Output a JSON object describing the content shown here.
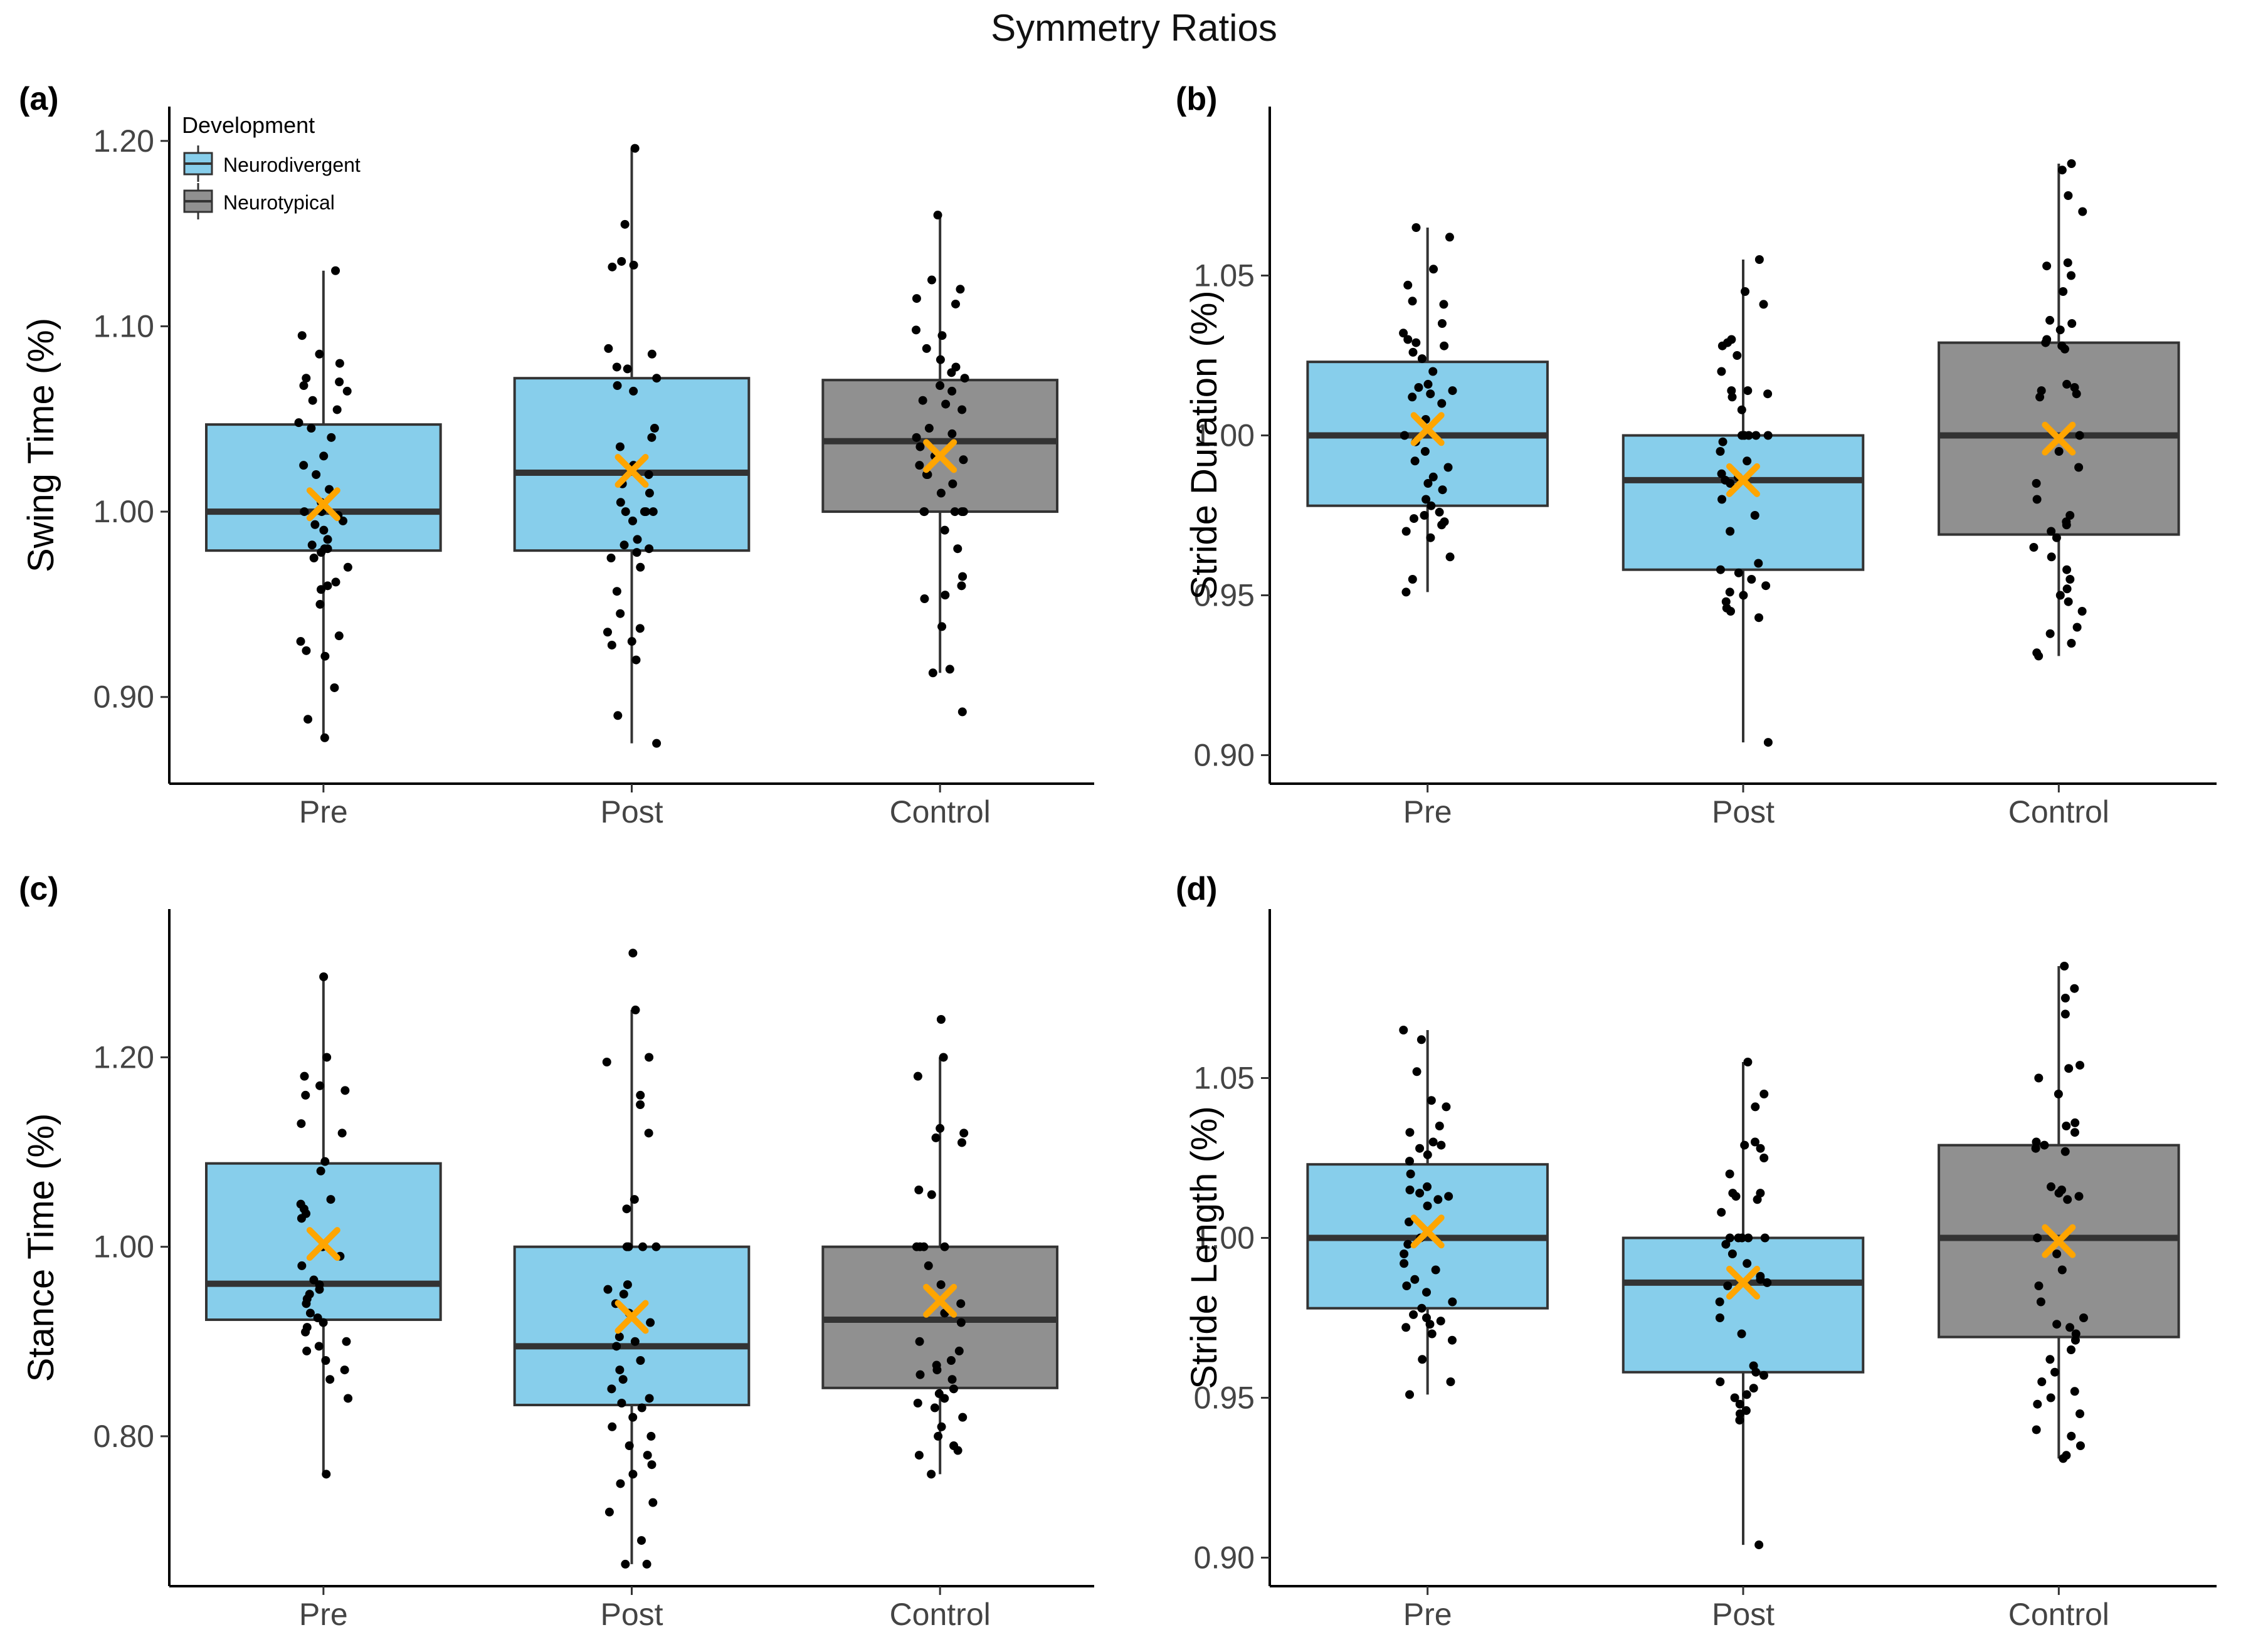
{
  "figure": {
    "title": "Symmetry Ratios"
  },
  "legend": {
    "title": "Development",
    "items": [
      {
        "label": "Neurodivergent",
        "color": "#87CEEB"
      },
      {
        "label": "Neurotypical",
        "color": "#909090"
      }
    ]
  },
  "colors": {
    "neurodivergent": "#87CEEB",
    "neurotypical": "#909090",
    "mean_marker": "#FFA500",
    "points": "#000000",
    "box_edge": "#333333"
  },
  "chart_data": [
    {
      "panel": "(a)",
      "type": "box",
      "ylabel": "Swing Time (%)",
      "ylim": [
        0.86,
        1.205
      ],
      "yticks": [
        0.9,
        1.0,
        1.1,
        1.2
      ],
      "ytick_labels": [
        "0.90",
        "1.00",
        "1.10",
        "1.20"
      ],
      "categories": [
        "Pre",
        "Post",
        "Control"
      ],
      "groups": [
        "Neurodivergent",
        "Neurodivergent",
        "Neurotypical"
      ],
      "boxes": [
        {
          "min": 0.878,
          "q1": 0.979,
          "median": 1.0,
          "q3": 1.047,
          "max": 1.13,
          "mean": 1.004
        },
        {
          "min": 0.875,
          "q1": 0.979,
          "median": 1.021,
          "q3": 1.072,
          "max": 1.196,
          "mean": 1.022
        },
        {
          "min": 0.913,
          "q1": 1.0,
          "median": 1.038,
          "q3": 1.071,
          "max": 1.16,
          "mean": 1.03
        }
      ],
      "points": [
        [
          1.13,
          1.095,
          1.085,
          1.08,
          1.072,
          1.07,
          1.068,
          1.065,
          1.06,
          1.055,
          1.048,
          1.045,
          1.04,
          1.03,
          1.025,
          1.02,
          1.012,
          1.005,
          1.0,
          1.0,
          0.998,
          0.995,
          0.993,
          0.99,
          0.985,
          0.982,
          0.98,
          0.98,
          0.978,
          0.975,
          0.97,
          0.962,
          0.96,
          0.958,
          0.95,
          0.933,
          0.93,
          0.925,
          0.922,
          0.905,
          0.888,
          0.878
        ],
        [
          1.196,
          1.155,
          1.135,
          1.133,
          1.132,
          1.088,
          1.085,
          1.078,
          1.077,
          1.072,
          1.068,
          1.065,
          1.045,
          1.04,
          1.035,
          1.025,
          1.02,
          1.015,
          1.01,
          1.005,
          1.0,
          1.0,
          1.0,
          1.0,
          0.995,
          0.985,
          0.982,
          0.98,
          0.978,
          0.975,
          0.97,
          0.957,
          0.945,
          0.937,
          0.935,
          0.93,
          0.928,
          0.92,
          0.89,
          0.875
        ],
        [
          1.16,
          1.125,
          1.12,
          1.115,
          1.112,
          1.098,
          1.095,
          1.088,
          1.082,
          1.078,
          1.075,
          1.072,
          1.068,
          1.065,
          1.06,
          1.058,
          1.055,
          1.045,
          1.042,
          1.04,
          1.035,
          1.03,
          1.028,
          1.025,
          1.02,
          1.02,
          1.015,
          1.01,
          1.0,
          1.0,
          1.0,
          1.0,
          1.0,
          0.99,
          0.98,
          0.965,
          0.96,
          0.955,
          0.953,
          0.938,
          0.915,
          0.913,
          0.892
        ]
      ]
    },
    {
      "panel": "(b)",
      "type": "box",
      "ylabel": "Stride Duration (%)",
      "ylim": [
        0.895,
        1.095
      ],
      "yticks": [
        0.9,
        0.95,
        1.0,
        1.05
      ],
      "ytick_labels": [
        "0.90",
        "0.95",
        "1.00",
        "1.05"
      ],
      "categories": [
        "Pre",
        "Post",
        "Control"
      ],
      "groups": [
        "Neurodivergent",
        "Neurodivergent",
        "Neurotypical"
      ],
      "boxes": [
        {
          "min": 0.951,
          "q1": 0.978,
          "median": 1.0,
          "q3": 1.023,
          "max": 1.065,
          "mean": 1.002
        },
        {
          "min": 0.904,
          "q1": 0.958,
          "median": 0.986,
          "q3": 1.0,
          "max": 1.055,
          "mean": 0.986
        },
        {
          "min": 0.931,
          "q1": 0.969,
          "median": 1.0,
          "q3": 1.029,
          "max": 1.085,
          "mean": 0.999
        }
      ],
      "points": [
        [
          1.065,
          1.062,
          1.052,
          1.047,
          1.042,
          1.041,
          1.035,
          1.032,
          1.03,
          1.029,
          1.028,
          1.026,
          1.024,
          1.02,
          1.016,
          1.015,
          1.014,
          1.013,
          1.012,
          1.01,
          1.005,
          1.0,
          0.998,
          0.995,
          0.992,
          0.99,
          0.987,
          0.985,
          0.983,
          0.98,
          0.978,
          0.976,
          0.975,
          0.974,
          0.973,
          0.972,
          0.97,
          0.968,
          0.962,
          0.955,
          0.951
        ],
        [
          1.055,
          1.045,
          1.041,
          1.03,
          1.029,
          1.028,
          1.025,
          1.02,
          1.014,
          1.014,
          1.013,
          1.012,
          1.008,
          1.0,
          1.0,
          1.0,
          1.0,
          1.0,
          0.998,
          0.995,
          0.992,
          0.988,
          0.987,
          0.986,
          0.985,
          0.98,
          0.975,
          0.97,
          0.96,
          0.958,
          0.957,
          0.955,
          0.953,
          0.951,
          0.95,
          0.948,
          0.946,
          0.945,
          0.943,
          0.904
        ],
        [
          1.085,
          1.083,
          1.075,
          1.07,
          1.054,
          1.053,
          1.05,
          1.045,
          1.036,
          1.035,
          1.033,
          1.03,
          1.029,
          1.028,
          1.027,
          1.016,
          1.015,
          1.014,
          1.013,
          1.012,
          1.0,
          0.995,
          0.99,
          0.985,
          0.98,
          0.975,
          0.973,
          0.972,
          0.97,
          0.968,
          0.965,
          0.962,
          0.958,
          0.955,
          0.952,
          0.95,
          0.948,
          0.945,
          0.94,
          0.938,
          0.935,
          0.932,
          0.931
        ]
      ]
    },
    {
      "panel": "(c)",
      "type": "box",
      "ylabel": "Stance Time (%)",
      "ylim": [
        0.655,
        1.33
      ],
      "yticks": [
        0.8,
        1.0,
        1.2
      ],
      "ytick_labels": [
        "0.80",
        "1.00",
        "1.20"
      ],
      "categories": [
        "Pre",
        "Post",
        "Control"
      ],
      "groups": [
        "Neurodivergent",
        "Neurodivergent",
        "Neurotypical"
      ],
      "boxes": [
        {
          "min": 0.76,
          "q1": 0.923,
          "median": 0.961,
          "q3": 1.088,
          "max": 1.285,
          "mean": 1.003
        },
        {
          "min": 0.665,
          "q1": 0.833,
          "median": 0.895,
          "q3": 1.0,
          "max": 1.25,
          "mean": 0.926
        },
        {
          "min": 0.76,
          "q1": 0.851,
          "median": 0.923,
          "q3": 1.0,
          "max": 1.2,
          "mean": 0.943
        }
      ],
      "points": [
        [
          1.285,
          1.2,
          1.18,
          1.17,
          1.165,
          1.16,
          1.13,
          1.12,
          1.09,
          1.08,
          1.05,
          1.045,
          1.04,
          1.035,
          1.03,
          1.0,
          0.99,
          0.98,
          0.965,
          0.96,
          0.955,
          0.95,
          0.945,
          0.94,
          0.93,
          0.925,
          0.92,
          0.915,
          0.91,
          0.9,
          0.895,
          0.89,
          0.88,
          0.87,
          0.86,
          0.84,
          0.76
        ],
        [
          1.31,
          1.25,
          1.2,
          1.195,
          1.16,
          1.15,
          1.12,
          1.05,
          1.04,
          1.0,
          1.0,
          1.0,
          1.0,
          0.96,
          0.955,
          0.95,
          0.94,
          0.93,
          0.92,
          0.905,
          0.9,
          0.895,
          0.88,
          0.87,
          0.86,
          0.85,
          0.84,
          0.835,
          0.83,
          0.82,
          0.81,
          0.8,
          0.79,
          0.78,
          0.77,
          0.76,
          0.75,
          0.73,
          0.72,
          0.69,
          0.665,
          0.665
        ],
        [
          1.24,
          1.2,
          1.18,
          1.125,
          1.12,
          1.115,
          1.11,
          1.06,
          1.055,
          1.0,
          1.0,
          1.0,
          1.0,
          0.98,
          0.96,
          0.94,
          0.93,
          0.92,
          0.9,
          0.89,
          0.88,
          0.875,
          0.87,
          0.865,
          0.86,
          0.85,
          0.845,
          0.84,
          0.835,
          0.83,
          0.82,
          0.81,
          0.8,
          0.79,
          0.785,
          0.78,
          0.76
        ]
      ]
    },
    {
      "panel": "(d)",
      "type": "box",
      "ylabel": "Stride Length (%)",
      "ylim": [
        0.895,
        1.095
      ],
      "yticks": [
        0.9,
        0.95,
        1.0,
        1.05
      ],
      "ytick_labels": [
        "0.90",
        "0.95",
        "1.00",
        "1.05"
      ],
      "categories": [
        "Pre",
        "Post",
        "Control"
      ],
      "groups": [
        "Neurodivergent",
        "Neurodivergent",
        "Neurotypical"
      ],
      "boxes": [
        {
          "min": 0.951,
          "q1": 0.978,
          "median": 1.0,
          "q3": 1.023,
          "max": 1.065,
          "mean": 1.002
        },
        {
          "min": 0.904,
          "q1": 0.958,
          "median": 0.986,
          "q3": 1.0,
          "max": 1.055,
          "mean": 0.986
        },
        {
          "min": 0.931,
          "q1": 0.969,
          "median": 1.0,
          "q3": 1.029,
          "max": 1.085,
          "mean": 0.999
        }
      ],
      "points": [
        [
          1.065,
          1.062,
          1.052,
          1.043,
          1.041,
          1.035,
          1.033,
          1.03,
          1.029,
          1.028,
          1.026,
          1.024,
          1.02,
          1.016,
          1.015,
          1.014,
          1.013,
          1.012,
          1.01,
          1.005,
          1.0,
          0.998,
          0.995,
          0.992,
          0.99,
          0.987,
          0.985,
          0.983,
          0.98,
          0.978,
          0.976,
          0.975,
          0.974,
          0.973,
          0.972,
          0.97,
          0.968,
          0.962,
          0.955,
          0.951
        ],
        [
          1.055,
          1.045,
          1.041,
          1.03,
          1.029,
          1.028,
          1.025,
          1.02,
          1.014,
          1.014,
          1.013,
          1.012,
          1.008,
          1.0,
          1.0,
          1.0,
          1.0,
          1.0,
          0.998,
          0.995,
          0.992,
          0.988,
          0.987,
          0.986,
          0.985,
          0.98,
          0.975,
          0.97,
          0.96,
          0.958,
          0.957,
          0.955,
          0.953,
          0.951,
          0.95,
          0.948,
          0.946,
          0.945,
          0.943,
          0.904
        ],
        [
          1.085,
          1.078,
          1.075,
          1.07,
          1.054,
          1.053,
          1.05,
          1.045,
          1.036,
          1.035,
          1.033,
          1.03,
          1.029,
          1.028,
          1.027,
          1.016,
          1.015,
          1.014,
          1.013,
          1.012,
          1.0,
          0.995,
          0.99,
          0.985,
          0.98,
          0.975,
          0.973,
          0.972,
          0.97,
          0.968,
          0.965,
          0.962,
          0.958,
          0.955,
          0.952,
          0.95,
          0.948,
          0.945,
          0.94,
          0.938,
          0.935,
          0.932,
          0.931
        ]
      ]
    }
  ]
}
